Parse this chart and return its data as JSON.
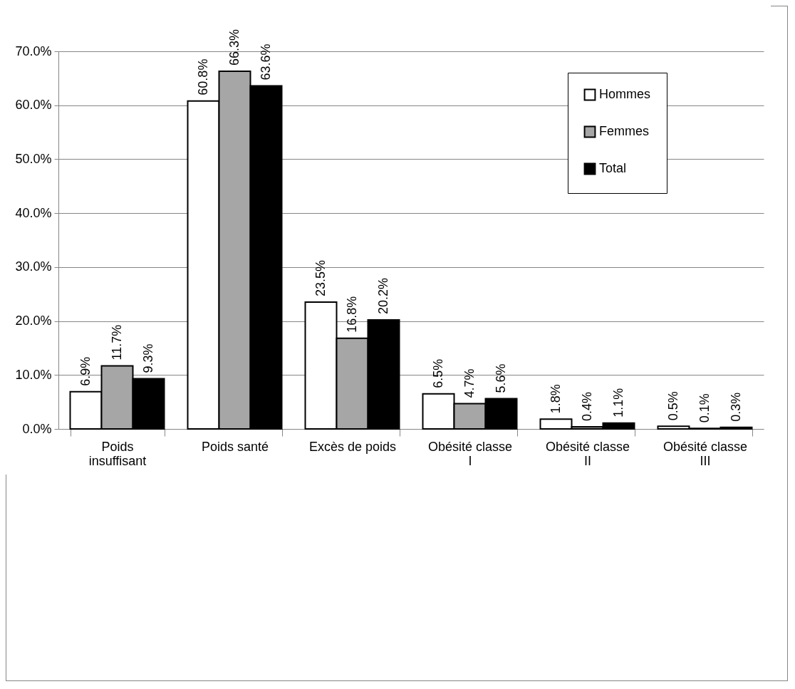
{
  "chart_data": {
    "type": "bar",
    "categories": [
      "Poids insuffisant",
      "Poids santé",
      "Excès de poids",
      "Obésité classe I",
      "Obésité classe II",
      "Obésité classe III"
    ],
    "series": [
      {
        "name": "Hommes",
        "color": "#ffffff",
        "values": [
          6.9,
          60.8,
          23.5,
          6.5,
          1.8,
          0.5
        ],
        "value_labels": [
          "6.9%",
          "60.8%",
          "23.5%",
          "6.5%",
          "1.8%",
          "0.5%"
        ]
      },
      {
        "name": "Femmes",
        "color": "#a6a6a6",
        "values": [
          11.7,
          66.3,
          16.8,
          4.7,
          0.4,
          0.1
        ],
        "value_labels": [
          "11.7%",
          "66.3%",
          "16.8%",
          "4.7%",
          "0.4%",
          "0.1%"
        ]
      },
      {
        "name": "Total",
        "color": "#000000",
        "values": [
          9.3,
          63.6,
          20.2,
          5.6,
          1.1,
          0.3
        ],
        "value_labels": [
          "9.3%",
          "63.6%",
          "20.2%",
          "5.6%",
          "1.1%",
          "0.3%"
        ]
      }
    ],
    "ylim": [
      0,
      70
    ],
    "yticks": [
      {
        "value": 0,
        "label": "0.0%"
      },
      {
        "value": 10,
        "label": "10.0%"
      },
      {
        "value": 20,
        "label": "20.0%"
      },
      {
        "value": 30,
        "label": "30.0%"
      },
      {
        "value": 40,
        "label": "40.0%"
      },
      {
        "value": 50,
        "label": "50.0%"
      },
      {
        "value": 60,
        "label": "60.0%"
      },
      {
        "value": 70,
        "label": "70.0%"
      }
    ],
    "grid": "y",
    "legend": "top right"
  }
}
